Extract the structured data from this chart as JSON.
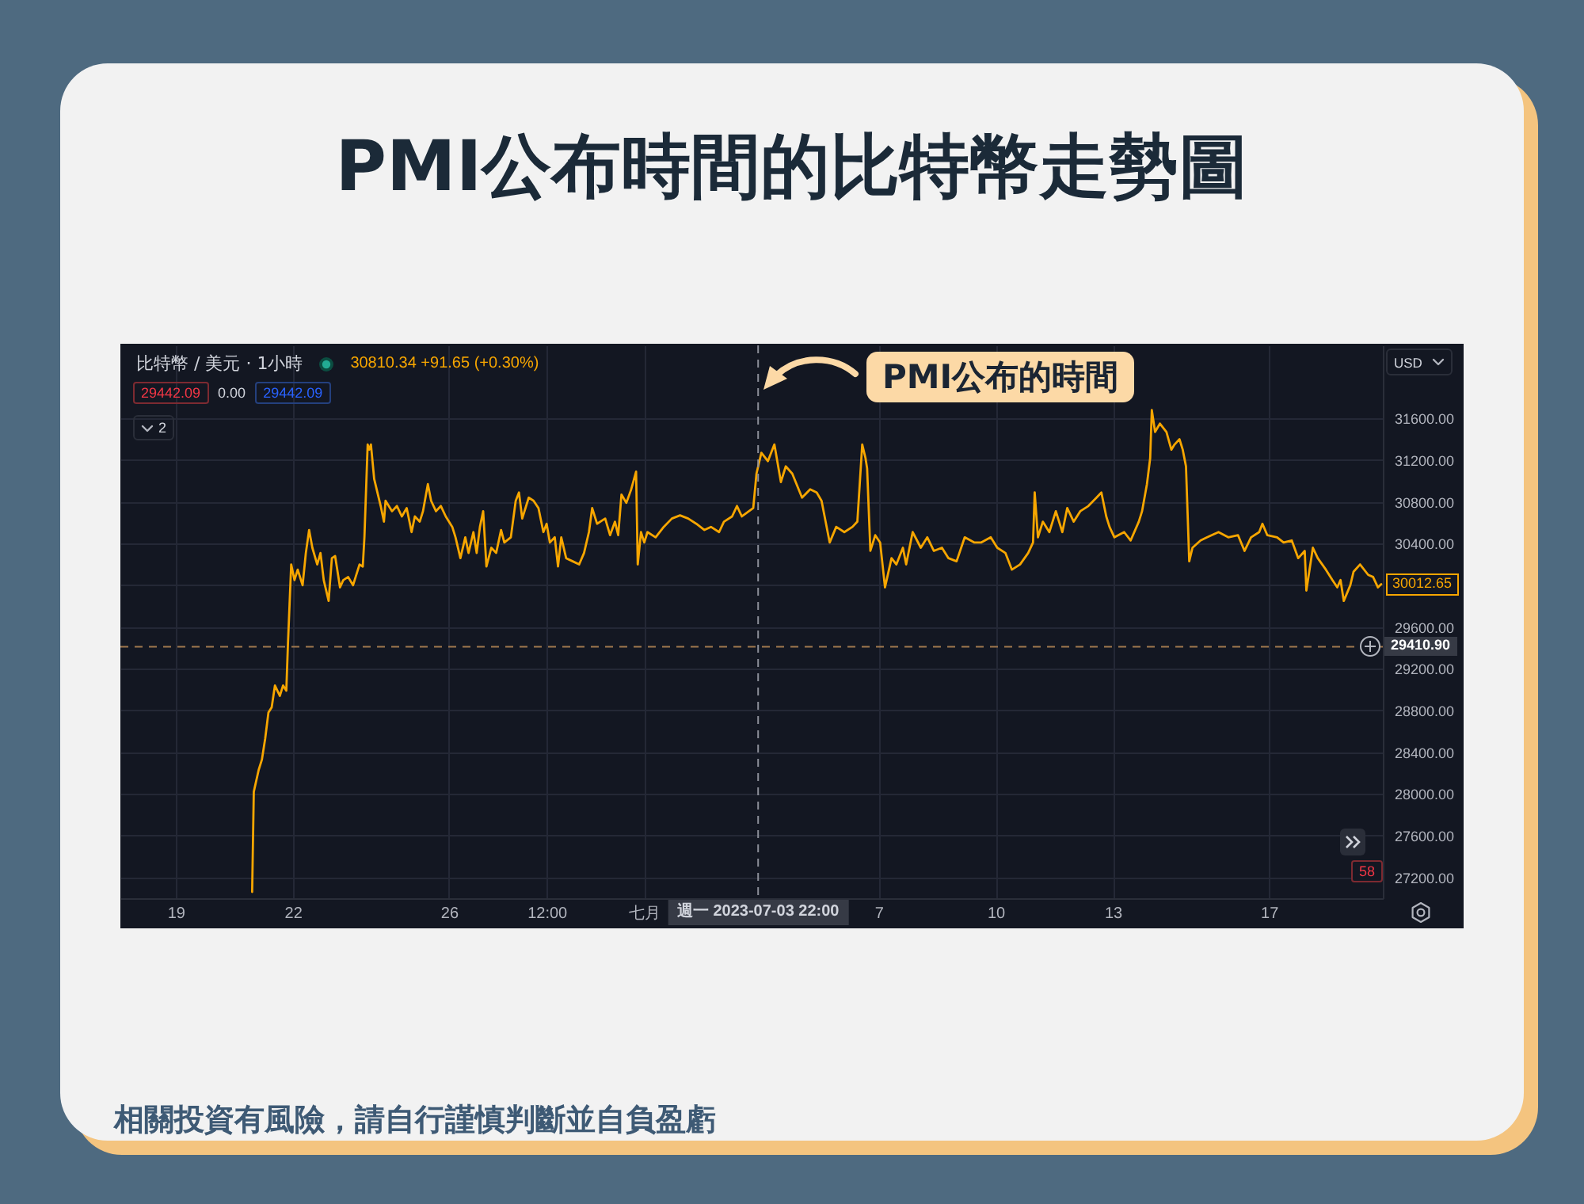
{
  "chart_data": {
    "type": "line",
    "title": "PMI公布時間的比特幣走勢圖",
    "subtitle": "比特幣 / 美元 · 1小時",
    "x": [
      "2023-06-20T23:00",
      "2023-06-21T00:00",
      "2023-06-21T03:00",
      "2023-06-21T05:00",
      "2023-06-21T07:00",
      "2023-06-21T09:00",
      "2023-06-21T11:00",
      "2023-06-21T13:00",
      "2023-06-21T16:00",
      "2023-06-21T18:00",
      "2023-06-21T20:00",
      "2023-06-21T21:00",
      "2023-06-21T23:00",
      "2023-06-22T01:00",
      "2023-06-22T03:00",
      "2023-06-22T06:00",
      "2023-06-22T08:00",
      "2023-06-22T10:00",
      "2023-06-22T12:00",
      "2023-06-22T15:00",
      "2023-06-22T17:00",
      "2023-06-22T19:00",
      "2023-06-22T22:00",
      "2023-06-23T00:00",
      "2023-06-23T02:00",
      "2023-06-23T05:00",
      "2023-06-23T07:00",
      "2023-06-23T10:00",
      "2023-06-23T13:00",
      "2023-06-23T17:00",
      "2023-06-23T19:00",
      "2023-06-23T20:00",
      "2023-06-23T22:00",
      "2023-06-23T23:00",
      "2023-06-24T00:00",
      "2023-06-24T02:00",
      "2023-06-24T06:00",
      "2023-06-24T08:00",
      "2023-06-24T09:00",
      "2023-06-24T13:00",
      "2023-06-24T16:00",
      "2023-06-24T19:00",
      "2023-06-24T22:00",
      "2023-06-25T01:00",
      "2023-06-25T03:00",
      "2023-06-25T06:00",
      "2023-06-25T08:00",
      "2023-06-25T11:00",
      "2023-06-25T13:00",
      "2023-06-25T16:00",
      "2023-06-25T19:00",
      "2023-06-25T22:00",
      "2023-06-26T02:00",
      "2023-06-26T04:00",
      "2023-06-26T07:00",
      "2023-06-26T10:00",
      "2023-06-26T12:00",
      "2023-06-26T15:00",
      "2023-06-26T17:00",
      "2023-06-26T19:00",
      "2023-06-26T21:00",
      "2023-06-26T23:00",
      "2023-06-27T02:00",
      "2023-06-27T05:00",
      "2023-06-27T08:00",
      "2023-06-27T10:00",
      "2023-06-27T14:00",
      "2023-06-27T17:00",
      "2023-06-27T19:00",
      "2023-06-27T21:00",
      "2023-06-28T01:00",
      "2023-06-28T04:00",
      "2023-06-28T07:00",
      "2023-06-28T10:00",
      "2023-06-28T12:00",
      "2023-06-28T14:00",
      "2023-06-28T17:00",
      "2023-06-28T19:00",
      "2023-06-28T21:00",
      "2023-06-29T00:00",
      "2023-06-29T04:00",
      "2023-06-29T08:00",
      "2023-06-29T11:00",
      "2023-06-29T14:00",
      "2023-06-29T16:00",
      "2023-06-29T19:00",
      "2023-06-30T00:00",
      "2023-06-30T03:00",
      "2023-06-30T06:00",
      "2023-06-30T08:00",
      "2023-06-30T10:00",
      "2023-06-30T13:00",
      "2023-06-30T16:00",
      "2023-06-30T19:00",
      "2023-06-30T20:00",
      "2023-06-30T22:00",
      "2023-07-01T00:00",
      "2023-07-01T02:00",
      "2023-07-01T07:00",
      "2023-07-01T12:00",
      "2023-07-01T17:00",
      "2023-07-01T22:00",
      "2023-07-02T03:00",
      "2023-07-02T08:00",
      "2023-07-02T13:00",
      "2023-07-02T17:00",
      "2023-07-02T22:00",
      "2023-07-03T01:00",
      "2023-07-03T06:00",
      "2023-07-03T09:00",
      "2023-07-03T12:00",
      "2023-07-03T19:00",
      "2023-07-03T21:00",
      "2023-07-04T00:00",
      "2023-07-04T04:00",
      "2023-07-04T08:00",
      "2023-07-04T12:00",
      "2023-07-04T15:00",
      "2023-07-04T19:00",
      "2023-07-05T01:00",
      "2023-07-05T06:00",
      "2023-07-05T10:00",
      "2023-07-05T13:00",
      "2023-07-05T18:00",
      "2023-07-05T22:00",
      "2023-07-06T03:00",
      "2023-07-06T08:00",
      "2023-07-06T11:00",
      "2023-07-06T14:00",
      "2023-07-06T16:00",
      "2023-07-06T17:00",
      "2023-07-06T19:00",
      "2023-07-06T22:00",
      "2023-07-07T01:00",
      "2023-07-07T04:00",
      "2023-07-07T08:00",
      "2023-07-07T11:00",
      "2023-07-07T15:00",
      "2023-07-07T17:00",
      "2023-07-07T21:00",
      "2023-07-08T02:00",
      "2023-07-08T06:00",
      "2023-07-08T10:00",
      "2023-07-08T15:00",
      "2023-07-08T19:00",
      "2023-07-09T00:00",
      "2023-07-09T05:00",
      "2023-07-09T11:00",
      "2023-07-09T15:00",
      "2023-07-09T21:00",
      "2023-07-10T01:00",
      "2023-07-10T06:00",
      "2023-07-10T10:00",
      "2023-07-10T15:00",
      "2023-07-10T20:00",
      "2023-07-10T23:00",
      "2023-07-11T00:00",
      "2023-07-11T02:00",
      "2023-07-11T05:00",
      "2023-07-11T09:00",
      "2023-07-11T13:00",
      "2023-07-11T17:00",
      "2023-07-11T20:00",
      "2023-07-12T00:00",
      "2023-07-12T04:00",
      "2023-07-12T09:00",
      "2023-07-12T14:00",
      "2023-07-12T17:00",
      "2023-07-12T20:00",
      "2023-07-12T22:00",
      "2023-07-13T01:00",
      "2023-07-13T07:00",
      "2023-07-13T11:00",
      "2023-07-13T16:00",
      "2023-07-13T18:00",
      "2023-07-13T21:00",
      "2023-07-13T23:00",
      "2023-07-14T00:00",
      "2023-07-14T02:00",
      "2023-07-14T05:00",
      "2023-07-14T09:00",
      "2023-07-14T12:00",
      "2023-07-14T14:00",
      "2023-07-14T17:00",
      "2023-07-14T19:00",
      "2023-07-14T21:00",
      "2023-07-14T23:00",
      "2023-07-15T01:00",
      "2023-07-15T06:00",
      "2023-07-15T10:00",
      "2023-07-15T17:00",
      "2023-07-15T23:00",
      "2023-07-16T05:00",
      "2023-07-16T09:00",
      "2023-07-16T13:00",
      "2023-07-16T18:00",
      "2023-07-16T20:00",
      "2023-07-16T23:00",
      "2023-07-17T05:00",
      "2023-07-17T09:00",
      "2023-07-17T14:00",
      "2023-07-17T18:00",
      "2023-07-17T22:00",
      "2023-07-17T23:00",
      "2023-07-18T03:00",
      "2023-07-18T06:00",
      "2023-07-18T11:00",
      "2023-07-18T15:00",
      "2023-07-18T18:00",
      "2023-07-18T20:00",
      "2023-07-18T22:00",
      "2023-07-19T02:00",
      "2023-07-19T04:00",
      "2023-07-19T08:00",
      "2023-07-19T13:00",
      "2023-07-19T16:00",
      "2023-07-19T19:00",
      "2023-07-19T21:00"
    ],
    "series": [
      {
        "color": "#f7a600",
        "values": [
          27060,
          28020,
          28230,
          28330,
          28530,
          28780,
          28830,
          29040,
          28940,
          29040,
          28990,
          29440,
          30200,
          30050,
          30150,
          30000,
          30310,
          30530,
          30360,
          30200,
          30310,
          30050,
          29850,
          30260,
          30280,
          29980,
          30050,
          30080,
          30000,
          30200,
          30180,
          30460,
          31350,
          31300,
          31350,
          31020,
          30760,
          30610,
          30810,
          30710,
          30760,
          30660,
          30740,
          30510,
          30660,
          30610,
          30710,
          30970,
          30810,
          30710,
          30760,
          30660,
          30560,
          30460,
          30260,
          30460,
          30310,
          30510,
          30310,
          30560,
          30710,
          30180,
          30360,
          30310,
          30530,
          30410,
          30460,
          30810,
          30890,
          30640,
          30840,
          30810,
          30740,
          30510,
          30590,
          30410,
          30460,
          30180,
          30460,
          30260,
          30230,
          30200,
          30310,
          30510,
          30740,
          30590,
          30640,
          30480,
          30610,
          30480,
          30870,
          30790,
          30920,
          31090,
          30200,
          30510,
          30410,
          30510,
          30460,
          30560,
          30640,
          30670,
          30640,
          30590,
          30530,
          30560,
          30510,
          30610,
          30660,
          30760,
          30660,
          30740,
          31070,
          31270,
          31190,
          31350,
          30990,
          31140,
          31070,
          30840,
          30920,
          30890,
          30810,
          30410,
          30560,
          30510,
          30560,
          30610,
          31350,
          31220,
          31120,
          30330,
          30480,
          30410,
          29980,
          30260,
          30200,
          30360,
          30200,
          30510,
          30360,
          30460,
          30330,
          30360,
          30260,
          30230,
          30460,
          30410,
          30410,
          30460,
          30360,
          30310,
          30150,
          30200,
          30310,
          30410,
          30890,
          30460,
          30610,
          30510,
          30710,
          30510,
          30740,
          30610,
          30710,
          30760,
          30840,
          30890,
          30660,
          30560,
          30460,
          30510,
          30430,
          30610,
          30710,
          30970,
          31220,
          31680,
          31470,
          31550,
          31470,
          31300,
          31350,
          31400,
          31300,
          31140,
          30230,
          30360,
          30430,
          30460,
          30510,
          30460,
          30480,
          30330,
          30460,
          30510,
          30590,
          30480,
          30460,
          30410,
          30430,
          30260,
          30330,
          29950,
          30360,
          30260,
          30150,
          30050,
          29980,
          30050,
          29850,
          30000,
          30130,
          30200,
          30100,
          30080,
          29980,
          30010
        ]
      }
    ],
    "xlim": [
      "2023-06-17T14:00",
      "2023-07-19T22:00"
    ],
    "xticks": [
      {
        "value": "2023-06-19",
        "label": "19"
      },
      {
        "value": "2023-06-22",
        "label": "22"
      },
      {
        "value": "2023-06-26",
        "label": "26"
      },
      {
        "value": "2023-06-28T12:00",
        "label": "12:00"
      },
      {
        "value": "2023-07-01",
        "label": "七月"
      },
      {
        "value": "2023-07-07",
        "label": "7"
      },
      {
        "value": "2023-07-10",
        "label": "10"
      },
      {
        "value": "2023-07-13",
        "label": "13"
      },
      {
        "value": "2023-07-17",
        "label": "17"
      }
    ],
    "ylim": [
      27000,
      32300
    ],
    "yticks": [
      {
        "value": 27200,
        "label": "27200.00"
      },
      {
        "value": 27600,
        "label": "27600.00"
      },
      {
        "value": 28000,
        "label": "28000.00"
      },
      {
        "value": 28400,
        "label": "28400.00"
      },
      {
        "value": 28800,
        "label": "28800.00"
      },
      {
        "value": 29200,
        "label": "29200.00"
      },
      {
        "value": 29600,
        "label": "29600.00"
      },
      {
        "value": 30000,
        "label": null
      },
      {
        "value": 30400,
        "label": "30400.00"
      },
      {
        "value": 30800,
        "label": "30800.00"
      },
      {
        "value": 31200,
        "label": "31200.00"
      },
      {
        "value": 31600,
        "label": "31600.00"
      }
    ],
    "grid": true,
    "line_style": "solid",
    "ref_lines": [
      {
        "axis": "x",
        "value": "2023-07-03T22:00",
        "label": "週一 2023-07-03 22:00",
        "color": "#8c8f99",
        "line_style": "dashed"
      },
      {
        "axis": "y",
        "value": 29410.9,
        "label": "29410.90",
        "color": "#a0784e",
        "line_style": "dashed"
      }
    ],
    "annotations": [
      "30810.34 +91.65 (+0.30%)",
      "29442.09",
      "0.00",
      "29442.09",
      "2",
      "USD",
      "PMI公布的時間",
      {
        "text": "30012.65",
        "x": "2023-07-19T21:00",
        "y": 30012.65
      },
      "58",
      "相關投資有風險，請自行謹慎判斷並自負盈虧"
    ]
  }
}
